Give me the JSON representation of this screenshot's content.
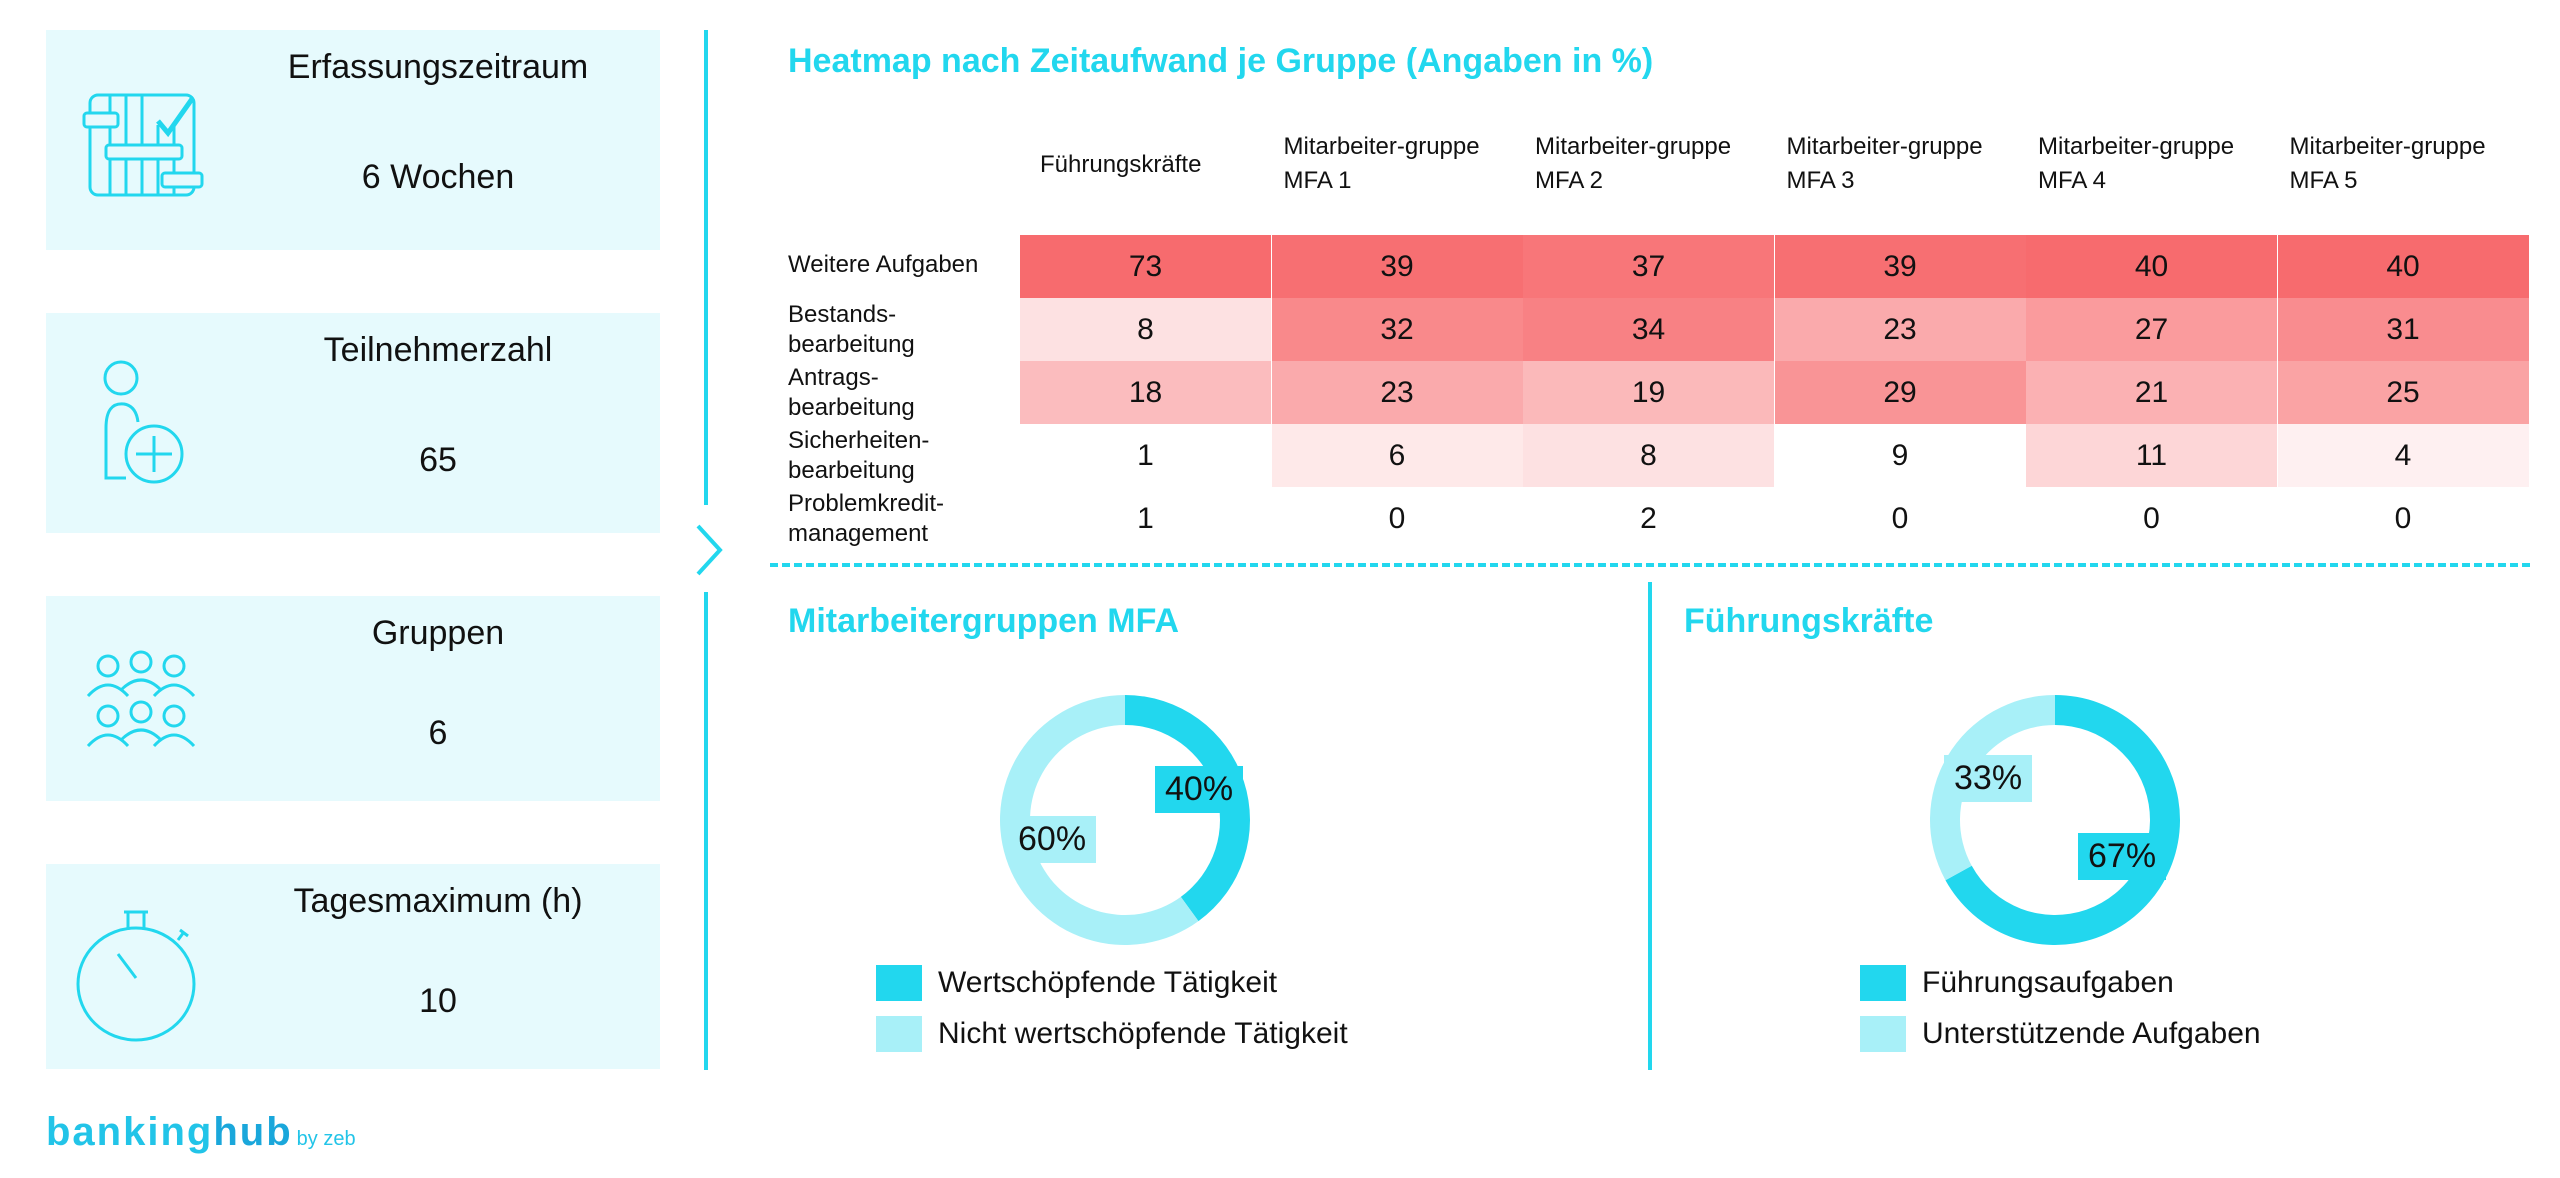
{
  "kpi_cards": [
    {
      "label": "Erfassungszeitraum",
      "value": "6 Wochen",
      "icon": "calendar-check-icon"
    },
    {
      "label": "Teilnehmerzahl",
      "value": "65",
      "icon": "person-add-icon"
    },
    {
      "label": "Gruppen",
      "value": "6",
      "icon": "group-icon"
    },
    {
      "label": "Tagesmaximum (h)",
      "value": "10",
      "icon": "stopwatch-icon"
    }
  ],
  "colors": {
    "accent": "#22d7ee",
    "accent_light": "#a8f0f8",
    "card_bg": "#e6fafd",
    "heat_max": "#f76b6e",
    "heat_min": "#ffffff"
  },
  "heatmap": {
    "title": "Heatmap nach Zeitaufwand je Gruppe (Angaben in %)",
    "columns": [
      {
        "line1": "Führungskräfte",
        "line2": ""
      },
      {
        "line1": "Mitarbeiter-gruppe",
        "line2": "MFA 1"
      },
      {
        "line1": "Mitarbeiter-gruppe",
        "line2": "MFA 2"
      },
      {
        "line1": "Mitarbeiter-gruppe",
        "line2": "MFA 3"
      },
      {
        "line1": "Mitarbeiter-gruppe",
        "line2": "MFA 4"
      },
      {
        "line1": "Mitarbeiter-gruppe",
        "line2": "MFA 5"
      }
    ],
    "rows": [
      {
        "line1": "Weitere Aufgaben",
        "line2": ""
      },
      {
        "line1": "Bestands-",
        "line2": "bearbeitung"
      },
      {
        "line1": "Antrags-",
        "line2": "bearbeitung"
      },
      {
        "line1": "Sicherheiten-",
        "line2": "bearbeitung"
      },
      {
        "line1": "Problemkredit-",
        "line2": "management"
      }
    ]
  },
  "mfa_section": {
    "title": "Mitarbeitergruppen MFA",
    "legend": [
      "Wertschöpfende Tätigkeit",
      "Nicht wertschöpfende Tätigkeit"
    ],
    "labels": [
      "40%",
      "60%"
    ]
  },
  "fk_section": {
    "title": "Führungskräfte",
    "legend": [
      "Führungsaufgaben",
      "Unterstützende Aufgaben"
    ],
    "labels": [
      "67%",
      "33%"
    ]
  },
  "logo": {
    "main": "banking",
    "hub": "hub",
    "by": "by zeb"
  },
  "chart_data": [
    {
      "type": "heatmap",
      "title": "Heatmap nach Zeitaufwand je Gruppe (Angaben in %)",
      "x": [
        "Führungskräfte",
        "Mitarbeiter-gruppe MFA 1",
        "Mitarbeiter-gruppe MFA 2",
        "Mitarbeiter-gruppe MFA 3",
        "Mitarbeiter-gruppe MFA 4",
        "Mitarbeiter-gruppe MFA 5"
      ],
      "y": [
        "Weitere Aufgaben",
        "Bestandsbearbeitung",
        "Antragsbearbeitung",
        "Sicherheitenbearbeitung",
        "Problemkreditmanagement"
      ],
      "values": [
        [
          73,
          39,
          37,
          39,
          40,
          40
        ],
        [
          8,
          32,
          34,
          23,
          27,
          31
        ],
        [
          18,
          23,
          19,
          29,
          21,
          25
        ],
        [
          1,
          6,
          8,
          9,
          11,
          4
        ],
        [
          1,
          0,
          2,
          0,
          0,
          0
        ]
      ],
      "unit": "%"
    },
    {
      "type": "pie",
      "title": "Mitarbeitergruppen MFA",
      "categories": [
        "Wertschöpfende Tätigkeit",
        "Nicht wertschöpfende Tätigkeit"
      ],
      "values": [
        40,
        60
      ],
      "legend": "bottom"
    },
    {
      "type": "pie",
      "title": "Führungskräfte",
      "categories": [
        "Führungsaufgaben",
        "Unterstützende Aufgaben"
      ],
      "values": [
        67,
        33
      ],
      "legend": "bottom"
    }
  ]
}
